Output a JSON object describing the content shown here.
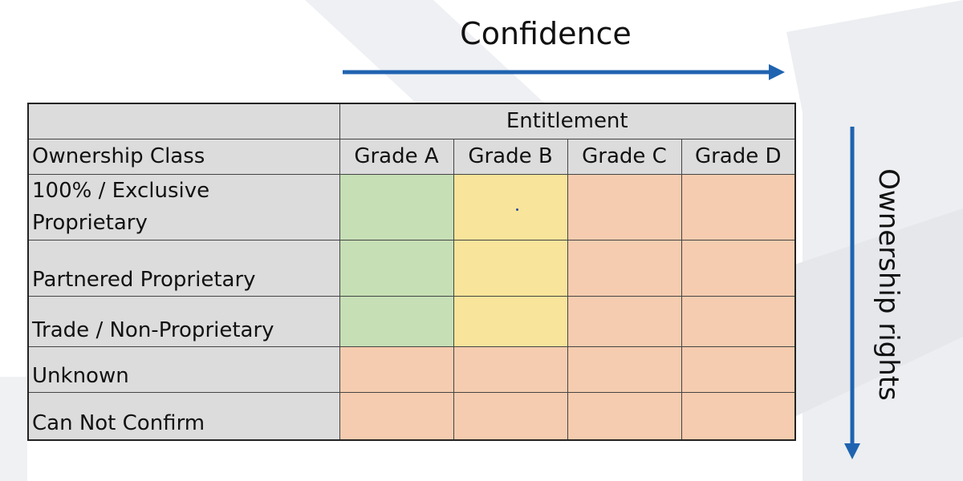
{
  "colors": {
    "arrow": "#1f63b0",
    "header_gray": "#dcdcdc",
    "green": "#c6dfb5",
    "yellow": "#f8e49a",
    "salmon": "#f5ccaf"
  },
  "axes": {
    "horizontal_label": "Confidence",
    "vertical_label": "Ownership rights"
  },
  "table": {
    "group_header": "Entitlement",
    "row_header": "Ownership Class",
    "columns": [
      "Grade A",
      "Grade B",
      "Grade C",
      "Grade D"
    ],
    "rows": [
      {
        "label_line1": "100% / Exclusive",
        "label_line2": "Proprietary",
        "cells": [
          "green",
          "yellow",
          "salmon",
          "salmon"
        ]
      },
      {
        "label": "Partnered Proprietary",
        "cells": [
          "green",
          "yellow",
          "salmon",
          "salmon"
        ]
      },
      {
        "label": "Trade / Non-Proprietary",
        "cells": [
          "green",
          "yellow",
          "salmon",
          "salmon"
        ]
      },
      {
        "label": "Unknown",
        "cells": [
          "salmon",
          "salmon",
          "salmon",
          "salmon"
        ]
      },
      {
        "label": "Can Not Confirm",
        "cells": [
          "salmon",
          "salmon",
          "salmon",
          "salmon"
        ]
      }
    ]
  }
}
